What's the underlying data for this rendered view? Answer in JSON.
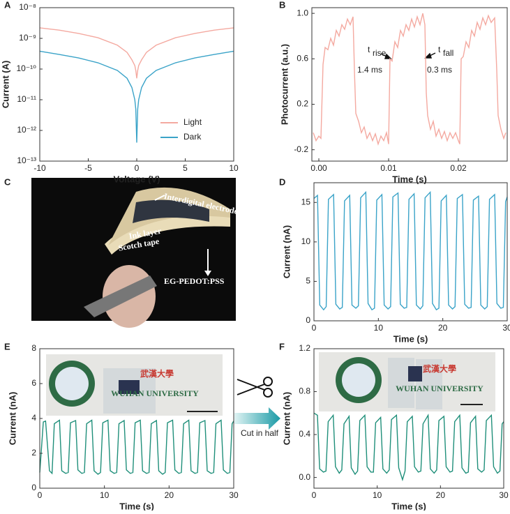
{
  "panel_labels": [
    "A",
    "B",
    "C",
    "D",
    "E",
    "F"
  ],
  "photo_texts": {
    "C": [
      "Interdigital electrode",
      "Ink layer",
      "Scotch tape",
      "EG-PEDOT:PSS"
    ],
    "E": [
      "武漢大學",
      "WUHAN UNIVERSITY"
    ],
    "F": [
      "武漢大學",
      "WUHAN UNIVERSITY"
    ]
  },
  "middle_text": "Cut in half",
  "chart_data": [
    {
      "type": "line",
      "xlabel": "Voltage (V)",
      "ylabel": "Current (A)",
      "log_y": true,
      "legend": "lower right",
      "xlim": [
        -10,
        10
      ],
      "xticks": [
        -10,
        -5,
        0,
        5,
        10
      ],
      "ylim": [
        1e-13,
        1e-08
      ],
      "yticks": [
        {
          "value": 1e-13,
          "label": "10⁻¹³"
        },
        {
          "value": 1e-12,
          "label": "10⁻¹²"
        },
        {
          "value": 1e-11,
          "label": "10⁻¹¹"
        },
        {
          "value": 1e-10,
          "label": "10⁻¹⁰"
        },
        {
          "value": 1e-09,
          "label": "10⁻⁹"
        },
        {
          "value": 1e-08,
          "label": "10⁻⁸"
        }
      ],
      "x": [
        -10,
        -8,
        -6,
        -4,
        -2,
        -1,
        -0.5,
        -0.2,
        -0.1,
        0,
        0.1,
        0.2,
        0.5,
        1,
        2,
        4,
        6,
        8,
        10
      ],
      "series": [
        {
          "name": "Light",
          "color": "#f4a9a0",
          "values": [
            2.2e-09,
            1.85e-09,
            1.45e-09,
            1.05e-09,
            6e-10,
            3.5e-10,
            2e-10,
            1.3e-10,
            9e-11,
            5e-11,
            9e-11,
            1.3e-10,
            2e-10,
            3.5e-10,
            6e-10,
            1.05e-09,
            1.45e-09,
            1.85e-09,
            2.2e-09
          ]
        },
        {
          "name": "Dark",
          "color": "#3aa3c8",
          "values": [
            3.8e-10,
            3e-10,
            2.3e-10,
            1.6e-10,
            9e-11,
            5e-11,
            2.5e-11,
            1e-11,
            5e-12,
            4e-13,
            5e-12,
            1e-11,
            2.5e-11,
            5e-11,
            9e-11,
            1.6e-10,
            2.3e-10,
            3e-10,
            3.8e-10
          ]
        }
      ]
    },
    {
      "type": "line",
      "xlabel": "Time (s)",
      "ylabel": "Photocurrent (a.u.)",
      "xlim": [
        -0.001,
        0.027
      ],
      "xticks": [
        {
          "value": 0,
          "label": "0.00"
        },
        {
          "value": 0.01,
          "label": "0.01"
        },
        {
          "value": 0.02,
          "label": "0.02"
        }
      ],
      "ylim": [
        -0.3,
        1.05
      ],
      "yticks": [
        -0.2,
        0.2,
        0.6,
        {
          "value": 1,
          "label": "1.0"
        }
      ],
      "annotations": [
        {
          "text": "t",
          "sub": "rise"
        },
        {
          "text": "1.4 ms"
        },
        {
          "text": "t",
          "sub": "fall"
        },
        {
          "text": "0.3 ms"
        }
      ],
      "x": [
        -0.0008,
        -0.0004,
        0,
        0.0003,
        0.0006,
        0.0009,
        0.0013,
        0.0017,
        0.0021,
        0.0025,
        0.0029,
        0.0033,
        0.0037,
        0.0041,
        0.0045,
        0.0049,
        0.0051,
        0.0053,
        0.0057,
        0.0061,
        0.0065,
        0.0069,
        0.0073,
        0.0077,
        0.0081,
        0.0085,
        0.0089,
        0.0093,
        0.0097,
        0.01,
        0.0102,
        0.0105,
        0.0109,
        0.0113,
        0.0117,
        0.0121,
        0.0125,
        0.0129,
        0.0133,
        0.0137,
        0.0141,
        0.0145,
        0.0149,
        0.0152,
        0.0154,
        0.0156,
        0.016,
        0.0164,
        0.0168,
        0.0172,
        0.0176,
        0.018,
        0.0184,
        0.0188,
        0.0192,
        0.0196,
        0.02,
        0.0202,
        0.0204,
        0.0207,
        0.0211,
        0.0215,
        0.0219,
        0.0223,
        0.0227,
        0.0231,
        0.0235,
        0.0239,
        0.0243,
        0.0247,
        0.0252,
        0.0255,
        0.0257,
        0.0261,
        0.0265,
        0.0268
      ],
      "series": [
        {
          "name": "Photocurrent",
          "color": "#f4a9a0",
          "values": [
            -0.05,
            -0.12,
            -0.08,
            -0.1,
            0.55,
            0.7,
            0.68,
            0.78,
            0.72,
            0.85,
            0.8,
            0.9,
            0.86,
            0.95,
            0.9,
            0.97,
            0.5,
            0.12,
            0.05,
            -0.05,
            0,
            -0.1,
            -0.05,
            -0.12,
            -0.06,
            -0.15,
            -0.08,
            -0.12,
            -0.05,
            -0.15,
            0.6,
            0.58,
            0.75,
            0.7,
            0.85,
            0.8,
            0.9,
            0.85,
            0.95,
            0.88,
            0.97,
            0.9,
            1.0,
            0.9,
            0.3,
            0.1,
            -0.02,
            0.05,
            -0.08,
            -0.02,
            -0.1,
            -0.04,
            -0.12,
            -0.05,
            -0.1,
            -0.05,
            -0.12,
            -0.15,
            0.6,
            0.62,
            0.75,
            0.7,
            0.85,
            0.8,
            0.92,
            0.86,
            0.96,
            0.9,
            0.98,
            0.92,
            0.96,
            0.5,
            0.1,
            -0.02,
            -0.1,
            -0.05
          ]
        }
      ]
    },
    {
      "type": "line",
      "xlabel": "Time (s)",
      "ylabel": "Current (nA)",
      "xlim": [
        0,
        30
      ],
      "xticks": [
        0,
        10,
        20,
        30
      ],
      "ylim": [
        0,
        17.5
      ],
      "yticks": [
        0,
        5,
        10,
        15
      ],
      "x": [
        0,
        0.55,
        0.9,
        1.5,
        1.9,
        2.25,
        3.05,
        3.4,
        4.0,
        4.4,
        4.75,
        5.55,
        5.9,
        6.5,
        6.9,
        7.25,
        8.05,
        8.4,
        9.0,
        9.4,
        9.75,
        10.55,
        10.9,
        11.5,
        11.9,
        12.25,
        13.05,
        13.4,
        14.0,
        14.4,
        14.75,
        15.55,
        15.9,
        16.5,
        16.9,
        17.25,
        18.05,
        18.4,
        19.0,
        19.4,
        19.75,
        20.55,
        20.9,
        21.5,
        21.9,
        22.25,
        23.05,
        23.4,
        24.0,
        24.4,
        24.75,
        25.55,
        25.9,
        26.5,
        26.9,
        27.25,
        28.05,
        28.4,
        29.0,
        29.4,
        29.75,
        30.0
      ],
      "series": [
        {
          "name": "Current",
          "color": "#3aa3c8",
          "values": [
            15.5,
            15.9,
            2.0,
            1.4,
            1.8,
            15.4,
            16.0,
            2.1,
            1.5,
            1.7,
            15.2,
            15.9,
            2.0,
            1.6,
            1.9,
            15.6,
            16.3,
            2.2,
            1.4,
            1.6,
            15.3,
            16.0,
            2.0,
            1.5,
            1.8,
            15.7,
            16.2,
            2.1,
            1.6,
            1.7,
            15.4,
            16.1,
            2.0,
            1.5,
            1.9,
            15.6,
            16.3,
            2.2,
            1.4,
            1.6,
            15.2,
            15.9,
            2.0,
            1.5,
            1.8,
            15.5,
            16.0,
            2.1,
            1.6,
            1.7,
            15.3,
            15.8,
            2.0,
            1.5,
            1.8,
            15.4,
            16.0,
            2.2,
            1.6,
            1.7,
            15.1,
            15.7
          ]
        }
      ]
    },
    {
      "type": "line",
      "xlabel": "Time (s)",
      "ylabel": "Current (nA)",
      "xlim": [
        0,
        30
      ],
      "xticks": [
        0,
        10,
        20,
        30
      ],
      "ylim": [
        0,
        8
      ],
      "yticks": [
        0,
        2,
        4,
        6,
        8
      ],
      "x": [
        0,
        0.55,
        0.9,
        1.5,
        1.9,
        2.25,
        3.05,
        3.4,
        4.0,
        4.4,
        4.75,
        5.55,
        5.9,
        6.5,
        6.9,
        7.25,
        8.05,
        8.4,
        9.0,
        9.4,
        9.75,
        10.55,
        10.9,
        11.5,
        11.9,
        12.25,
        13.05,
        13.4,
        14.0,
        14.4,
        14.75,
        15.55,
        15.9,
        16.5,
        16.9,
        17.25,
        18.05,
        18.4,
        19.0,
        19.4,
        19.75,
        20.55,
        20.9,
        21.5,
        21.9,
        22.25,
        23.05,
        23.4,
        24.0,
        24.4,
        24.75,
        25.55,
        25.9,
        26.5,
        26.9,
        27.25,
        28.05,
        28.4,
        29.0,
        29.4,
        29.75,
        30.0
      ],
      "series": [
        {
          "name": "Current",
          "color": "#1f8f7a",
          "values": [
            0.9,
            3.8,
            3.85,
            1.0,
            0.85,
            3.7,
            3.9,
            1.0,
            0.85,
            0.9,
            3.75,
            3.88,
            1.05,
            0.85,
            0.9,
            3.7,
            3.9,
            1.0,
            0.8,
            0.9,
            3.75,
            3.9,
            1.0,
            0.85,
            0.9,
            3.7,
            3.88,
            1.05,
            0.85,
            0.9,
            3.75,
            3.9,
            1.0,
            0.85,
            0.9,
            3.7,
            3.88,
            1.0,
            0.8,
            0.9,
            3.75,
            3.9,
            1.05,
            0.85,
            0.9,
            3.7,
            3.9,
            1.0,
            0.85,
            0.9,
            3.75,
            3.88,
            1.0,
            0.85,
            0.9,
            3.7,
            3.9,
            1.05,
            0.85,
            0.9,
            3.7,
            3.85
          ]
        }
      ]
    },
    {
      "type": "line",
      "xlabel": "Time (s)",
      "ylabel": "Current (nA)",
      "xlim": [
        0,
        30
      ],
      "xticks": [
        0,
        10,
        20,
        30
      ],
      "ylim": [
        -0.1,
        1.2
      ],
      "yticks": [
        {
          "value": 0,
          "label": "0.0"
        },
        0.4,
        0.8,
        1.2
      ],
      "x": [
        0,
        0.55,
        0.9,
        1.5,
        1.9,
        2.25,
        3.05,
        3.4,
        4.0,
        4.4,
        4.75,
        5.55,
        5.9,
        6.5,
        6.9,
        7.25,
        8.05,
        8.4,
        9.0,
        9.4,
        9.75,
        10.55,
        10.9,
        11.5,
        11.9,
        12.25,
        13.05,
        13.4,
        14.0,
        14.4,
        14.75,
        15.55,
        15.9,
        16.5,
        16.9,
        17.25,
        18.05,
        18.4,
        19.0,
        19.4,
        19.75,
        20.55,
        20.9,
        21.5,
        21.9,
        22.25,
        23.05,
        23.4,
        24.0,
        24.4,
        24.75,
        25.55,
        25.9,
        26.5,
        26.9,
        27.25,
        28.05,
        28.4,
        29.0,
        29.4,
        29.75,
        30.0
      ],
      "series": [
        {
          "name": "Current",
          "color": "#1f8f7a",
          "values": [
            0.6,
            0.58,
            0.08,
            0.05,
            0.06,
            0.52,
            0.58,
            0.1,
            0.04,
            0.07,
            0.5,
            0.57,
            0.09,
            0.03,
            0.06,
            0.53,
            0.58,
            0.1,
            0.05,
            0.05,
            0.51,
            0.56,
            0.08,
            0.04,
            0.07,
            0.54,
            0.58,
            0.09,
            -0.02,
            0.06,
            0.52,
            0.57,
            0.1,
            0.05,
            0.06,
            0.5,
            0.58,
            0.08,
            0.04,
            0.07,
            0.53,
            0.57,
            0.1,
            0.05,
            0.06,
            0.52,
            0.58,
            0.09,
            0.04,
            0.05,
            0.51,
            0.57,
            0.08,
            0.05,
            0.07,
            0.53,
            0.58,
            0.1,
            0.04,
            0.06,
            0.5,
            0.52
          ]
        }
      ]
    }
  ]
}
